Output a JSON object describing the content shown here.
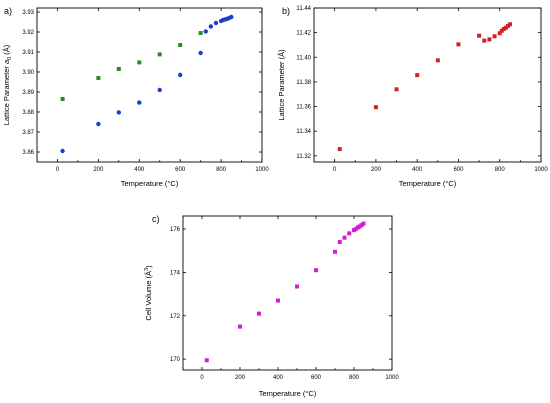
{
  "chart_data": [
    {
      "type": "scatter",
      "panel_label": "a)",
      "xlabel": "Temperature (°C)",
      "ylabel_parts": [
        "Lattice Parameter ",
        "a",
        "0",
        " (Å)"
      ],
      "xlim": [
        -100,
        1000
      ],
      "ylim": [
        3.855,
        3.932
      ],
      "xticks": [
        0,
        200,
        400,
        600,
        800,
        1000
      ],
      "yticks": [
        3.86,
        3.87,
        3.88,
        3.89,
        3.9,
        3.91,
        3.92,
        3.93
      ],
      "ytick_labels": [
        "3.86",
        "3.87",
        "3.88",
        "3.89",
        "3.90",
        "3.91",
        "3.92",
        "3.93"
      ],
      "series": [
        {
          "marker": "square",
          "color": "#2a8a2a",
          "x": [
            25,
            200,
            300,
            400,
            500,
            600,
            700
          ],
          "y": [
            3.8865,
            3.897,
            3.9015,
            3.9048,
            3.9088,
            3.9135,
            3.9195
          ]
        },
        {
          "marker": "circle",
          "color": "#1a3fd0",
          "x": [
            25,
            200,
            300,
            400,
            500,
            600,
            700,
            725,
            750,
            775,
            800,
            810,
            820,
            830,
            840,
            850
          ],
          "y": [
            3.8605,
            3.874,
            3.8798,
            3.8847,
            3.891,
            3.8985,
            3.9095,
            3.9203,
            3.9228,
            3.9245,
            3.9255,
            3.926,
            3.9263,
            3.9266,
            3.927,
            3.9275
          ]
        }
      ]
    },
    {
      "type": "scatter",
      "panel_label": "b)",
      "xlabel": "Temperature (°C)",
      "ylabel_parts": [
        "Lattice Parameter (Å)"
      ],
      "xlim": [
        -100,
        1000
      ],
      "ylim": [
        11.315,
        11.44
      ],
      "xticks": [
        0,
        200,
        400,
        600,
        800,
        1000
      ],
      "yticks": [
        11.32,
        11.34,
        11.36,
        11.38,
        11.4,
        11.42,
        11.44
      ],
      "ytick_labels": [
        "11.32",
        "11.34",
        "11.36",
        "11.38",
        "11.40",
        "11.42",
        "11.44"
      ],
      "series": [
        {
          "marker": "square",
          "color": "#d42020",
          "x": [
            25,
            200,
            300,
            400,
            500,
            600,
            700,
            725,
            750,
            775,
            800,
            810,
            820,
            830,
            840,
            850
          ],
          "y": [
            11.3255,
            11.3595,
            11.374,
            11.3855,
            11.3975,
            11.4105,
            11.4175,
            11.4135,
            11.4145,
            11.417,
            11.4195,
            11.4215,
            11.423,
            11.424,
            11.4255,
            11.4268
          ]
        }
      ]
    },
    {
      "type": "scatter",
      "panel_label": "c)",
      "xlabel": "Temperature (°C)",
      "ylabel_parts": [
        "Cell Volume (Å",
        "3",
        ")"
      ],
      "xlim": [
        -100,
        1000
      ],
      "ylim": [
        169.5,
        176.6
      ],
      "xticks": [
        0,
        200,
        400,
        600,
        800,
        1000
      ],
      "yticks": [
        170,
        172,
        174,
        176
      ],
      "ytick_labels": [
        "170",
        "172",
        "174",
        "176"
      ],
      "series": [
        {
          "marker": "square",
          "color": "#d41ed4",
          "x": [
            25,
            200,
            300,
            400,
            500,
            600,
            700,
            725,
            750,
            775,
            800,
            810,
            820,
            830,
            840,
            850
          ],
          "y": [
            169.95,
            171.5,
            172.1,
            172.7,
            173.35,
            174.1,
            174.95,
            175.4,
            175.6,
            175.8,
            175.95,
            176.0,
            176.07,
            176.12,
            176.18,
            176.25
          ]
        }
      ]
    }
  ]
}
